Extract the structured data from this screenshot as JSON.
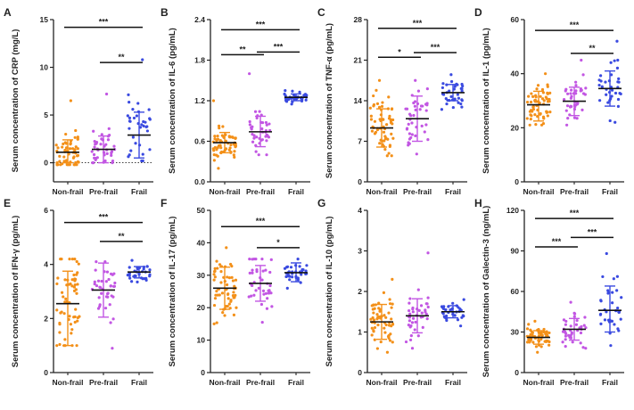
{
  "colors": {
    "non_frail": "#f39019",
    "pre_frail": "#c256e3",
    "frail": "#3a4ae0",
    "axis": "#222222"
  },
  "chart_data": [
    {
      "panel": "A",
      "type": "scatter",
      "ylabel": "Serum concentration of CRP (mg/L)",
      "categories": [
        "Non-frail",
        "Pre-frail",
        "Frail"
      ],
      "ylim": [
        -2,
        15
      ],
      "yticks": [
        0,
        5,
        10,
        15
      ],
      "zero_line": true,
      "series": [
        {
          "name": "Non-frail",
          "mean": 1.1,
          "sd_low": 0.0,
          "sd_high": 2.4,
          "n": 60,
          "min": -0.2,
          "max": 6.5
        },
        {
          "name": "Pre-frail",
          "mean": 1.4,
          "sd_low": 0.0,
          "sd_high": 2.8,
          "n": 40,
          "min": 0.0,
          "max": 7.2
        },
        {
          "name": "Frail",
          "mean": 2.9,
          "sd_low": 0.5,
          "sd_high": 5.3,
          "n": 35,
          "min": 0.2,
          "max": 10.8
        }
      ],
      "significance": [
        {
          "from": "Non-frail",
          "to": "Frail",
          "y": 14.2,
          "label": "***"
        },
        {
          "from": "Pre-frail",
          "to": "Frail",
          "y": 10.5,
          "label": "**"
        }
      ]
    },
    {
      "panel": "B",
      "type": "scatter",
      "ylabel": "Serum concentration of IL-6 (pg/mL)",
      "categories": [
        "Non-frail",
        "Pre-frail",
        "Frail"
      ],
      "ylim": [
        0,
        2.4
      ],
      "yticks": [
        0.0,
        0.6,
        1.2,
        1.8,
        2.4
      ],
      "series": [
        {
          "name": "Non-frail",
          "mean": 0.58,
          "sd_low": 0.43,
          "sd_high": 0.73,
          "n": 60,
          "min": 0.2,
          "max": 1.2
        },
        {
          "name": "Pre-frail",
          "mean": 0.74,
          "sd_low": 0.52,
          "sd_high": 0.97,
          "n": 40,
          "min": 0.4,
          "max": 1.6
        },
        {
          "name": "Frail",
          "mean": 1.25,
          "sd_low": 1.2,
          "sd_high": 1.3,
          "n": 35,
          "min": 1.15,
          "max": 1.35
        }
      ],
      "significance": [
        {
          "from": "Non-frail",
          "to": "Frail",
          "y": 2.25,
          "label": "***"
        },
        {
          "from": "Non-frail",
          "to": "Pre-frail",
          "y": 1.88,
          "label": "**"
        },
        {
          "from": "Pre-frail",
          "to": "Frail",
          "y": 1.92,
          "label": "***"
        }
      ]
    },
    {
      "panel": "C",
      "type": "scatter",
      "ylabel": "Serum concentration of TNF-α (pg/mL)",
      "categories": [
        "Non-frail",
        "Pre-frail",
        "Frail"
      ],
      "ylim": [
        0,
        28
      ],
      "yticks": [
        0,
        7,
        14,
        21,
        28
      ],
      "series": [
        {
          "name": "Non-frail",
          "mean": 9.3,
          "sd_low": 6.0,
          "sd_high": 12.6,
          "n": 60,
          "min": 4.5,
          "max": 17.5
        },
        {
          "name": "Pre-frail",
          "mean": 10.9,
          "sd_low": 7.0,
          "sd_high": 14.8,
          "n": 40,
          "min": 4.8,
          "max": 17.5
        },
        {
          "name": "Frail",
          "mean": 15.4,
          "sd_low": 14.0,
          "sd_high": 16.8,
          "n": 35,
          "min": 12.5,
          "max": 18.5
        }
      ],
      "significance": [
        {
          "from": "Non-frail",
          "to": "Frail",
          "y": 26.5,
          "label": "***"
        },
        {
          "from": "Non-frail",
          "to": "Pre-frail",
          "y": 21.5,
          "label": "*"
        },
        {
          "from": "Pre-frail",
          "to": "Frail",
          "y": 22.3,
          "label": "***"
        }
      ]
    },
    {
      "panel": "D",
      "type": "scatter",
      "ylabel": "Serum concentration of IL-1 (pg/mL)",
      "categories": [
        "Non-frail",
        "Pre-frail",
        "Frail"
      ],
      "ylim": [
        0,
        60
      ],
      "yticks": [
        0,
        20,
        40,
        60
      ],
      "series": [
        {
          "name": "Non-frail",
          "mean": 28.5,
          "sd_low": 22.5,
          "sd_high": 33.5,
          "n": 60,
          "min": 21.0,
          "max": 40.0
        },
        {
          "name": "Pre-frail",
          "mean": 29.8,
          "sd_low": 24.5,
          "sd_high": 35.0,
          "n": 40,
          "min": 21.0,
          "max": 45.0
        },
        {
          "name": "Frail",
          "mean": 34.5,
          "sd_low": 28.0,
          "sd_high": 41.0,
          "n": 35,
          "min": 22.0,
          "max": 52.0
        }
      ],
      "significance": [
        {
          "from": "Non-frail",
          "to": "Frail",
          "y": 56.0,
          "label": "***"
        },
        {
          "from": "Pre-frail",
          "to": "Frail",
          "y": 47.5,
          "label": "**"
        }
      ]
    },
    {
      "panel": "E",
      "type": "scatter",
      "ylabel": "Serum concentration of IFN-γ (pg/mL)",
      "categories": [
        "Non-frail",
        "Pre-frail",
        "Frail"
      ],
      "ylim": [
        0,
        6
      ],
      "yticks": [
        0,
        2,
        4,
        6
      ],
      "series": [
        {
          "name": "Non-frail",
          "mean": 2.55,
          "sd_low": 1.0,
          "sd_high": 3.75,
          "n": 60,
          "min": 1.0,
          "max": 4.2
        },
        {
          "name": "Pre-frail",
          "mean": 3.05,
          "sd_low": 2.05,
          "sd_high": 4.05,
          "n": 40,
          "min": 0.9,
          "max": 4.1
        },
        {
          "name": "Frail",
          "mean": 3.72,
          "sd_low": 3.5,
          "sd_high": 3.92,
          "n": 35,
          "min": 3.35,
          "max": 4.15
        }
      ],
      "significance": [
        {
          "from": "Non-frail",
          "to": "Frail",
          "y": 5.55,
          "label": "***"
        },
        {
          "from": "Pre-frail",
          "to": "Frail",
          "y": 4.85,
          "label": "**"
        }
      ]
    },
    {
      "panel": "F",
      "type": "scatter",
      "ylabel": "Serum concentration of IL-17 (pg/mL)",
      "categories": [
        "Non-frail",
        "Pre-frail",
        "Frail"
      ],
      "ylim": [
        0,
        50
      ],
      "yticks": [
        0,
        10,
        20,
        30,
        40,
        50
      ],
      "series": [
        {
          "name": "Non-frail",
          "mean": 26.0,
          "sd_low": 19.5,
          "sd_high": 32.5,
          "n": 60,
          "min": 15.0,
          "max": 38.5
        },
        {
          "name": "Pre-frail",
          "mean": 27.5,
          "sd_low": 22.0,
          "sd_high": 33.0,
          "n": 40,
          "min": 15.5,
          "max": 35.0
        },
        {
          "name": "Frail",
          "mean": 30.8,
          "sd_low": 28.0,
          "sd_high": 33.8,
          "n": 35,
          "min": 26.0,
          "max": 35.0
        }
      ],
      "significance": [
        {
          "from": "Non-frail",
          "to": "Frail",
          "y": 45.0,
          "label": "***"
        },
        {
          "from": "Pre-frail",
          "to": "Frail",
          "y": 38.5,
          "label": "*"
        }
      ]
    },
    {
      "panel": "G",
      "type": "scatter",
      "ylabel": "Serum concentration of IL-10 (pg/mL)",
      "categories": [
        "Non-frail",
        "Pre-frail",
        "Frail"
      ],
      "ylim": [
        0,
        4
      ],
      "yticks": [
        0,
        1,
        2,
        3,
        4
      ],
      "series": [
        {
          "name": "Non-frail",
          "mean": 1.25,
          "sd_low": 0.82,
          "sd_high": 1.68,
          "n": 60,
          "min": 0.5,
          "max": 2.3
        },
        {
          "name": "Pre-frail",
          "mean": 1.4,
          "sd_low": 0.98,
          "sd_high": 1.82,
          "n": 40,
          "min": 0.6,
          "max": 2.95
        },
        {
          "name": "Frail",
          "mean": 1.5,
          "sd_low": 1.35,
          "sd_high": 1.65,
          "n": 35,
          "min": 1.15,
          "max": 1.8
        }
      ],
      "significance": []
    },
    {
      "panel": "H",
      "type": "scatter",
      "ylabel": "Serum concentration of Galectin-3 (ng/mL)",
      "categories": [
        "Non-frail",
        "Pre-frail",
        "Frail"
      ],
      "ylim": [
        0,
        120
      ],
      "yticks": [
        0,
        30,
        60,
        90,
        120
      ],
      "series": [
        {
          "name": "Non-frail",
          "mean": 26.0,
          "sd_low": 21.0,
          "sd_high": 31.0,
          "n": 60,
          "min": 15.0,
          "max": 38.0
        },
        {
          "name": "Pre-frail",
          "mean": 32.0,
          "sd_low": 24.0,
          "sd_high": 40.0,
          "n": 40,
          "min": 18.0,
          "max": 52.0
        },
        {
          "name": "Frail",
          "mean": 46.0,
          "sd_low": 30.0,
          "sd_high": 64.0,
          "n": 35,
          "min": 20.0,
          "max": 88.0
        }
      ],
      "significance": [
        {
          "from": "Non-frail",
          "to": "Frail",
          "y": 114.0,
          "label": "***"
        },
        {
          "from": "Non-frail",
          "to": "Pre-frail",
          "y": 93.0,
          "label": "***"
        },
        {
          "from": "Pre-frail",
          "to": "Frail",
          "y": 100.0,
          "label": "***"
        }
      ]
    }
  ]
}
